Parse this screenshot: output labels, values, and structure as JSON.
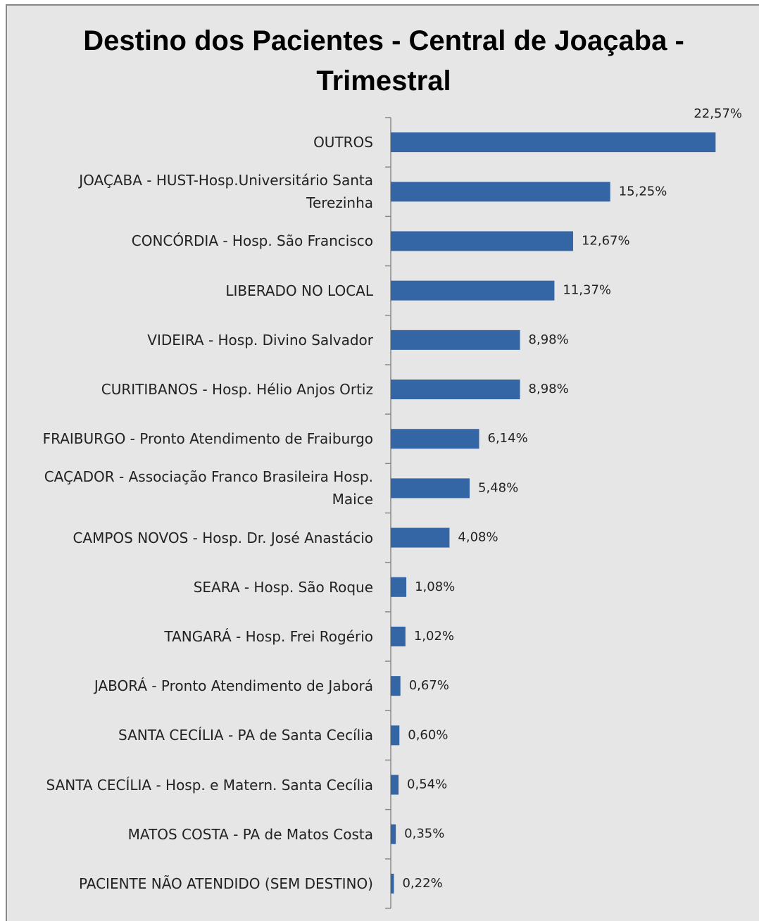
{
  "chart_data": {
    "type": "barh",
    "title": "Destino dos Pacientes - Central de Joaçaba - Trimestral",
    "categories": [
      "OUTROS",
      "JOAÇABA - HUST-Hosp.Universitário Santa Terezinha",
      "CONCÓRDIA - Hosp. São Francisco",
      "LIBERADO NO LOCAL",
      "VIDEIRA - Hosp. Divino Salvador",
      "CURITIBANOS - Hosp. Hélio Anjos Ortiz",
      "FRAIBURGO - Pronto Atendimento de Fraiburgo",
      "CAÇADOR - Associação Franco Brasileira Hosp. Maice",
      "CAMPOS NOVOS - Hosp. Dr. José Anastácio",
      "SEARA - Hosp. São Roque",
      "TANGARÁ - Hosp. Frei Rogério",
      "JABORÁ - Pronto Atendimento de Jaborá",
      "SANTA CECÍLIA - PA de Santa Cecília",
      "SANTA CECÍLIA  - Hosp. e Matern. Santa Cecília",
      "MATOS COSTA - PA de Matos Costa",
      "PACIENTE NÃO ATENDIDO (SEM DESTINO)"
    ],
    "values": [
      22.57,
      15.25,
      12.67,
      11.37,
      8.98,
      8.98,
      6.14,
      5.48,
      4.08,
      1.08,
      1.02,
      0.67,
      0.6,
      0.54,
      0.35,
      0.22
    ],
    "value_labels": [
      "22,57%",
      "15,25%",
      "12,67%",
      "11,37%",
      "8,98%",
      "8,98%",
      "6,14%",
      "5,48%",
      "4,08%",
      "1,08%",
      "1,02%",
      "0,67%",
      "0,60%",
      "0,54%",
      "0,35%",
      "0,22%"
    ],
    "color": "#3465a4",
    "xlim": [
      0,
      25
    ]
  }
}
